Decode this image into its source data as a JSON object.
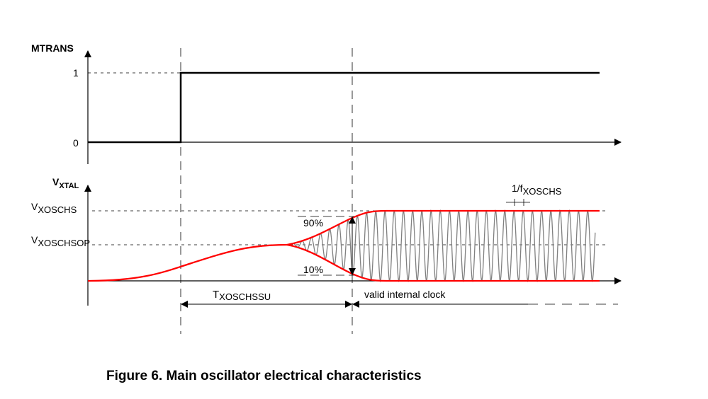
{
  "diagram": {
    "top_signal": {
      "name": "MTRANS",
      "level_high": "1",
      "level_low": "0"
    },
    "bottom_signal": {
      "name_main": "V",
      "name_sub": "XTAL",
      "level_high_main": "V",
      "level_high_sub": "XOSCHS",
      "level_op_main": "V",
      "level_op_sub": "XOSCHSOP"
    },
    "pct_90": "90%",
    "pct_10": "10%",
    "startup_main": "T",
    "startup_sub": "XOSCHSSU",
    "valid_clock": "valid internal clock",
    "period_main": "1/f",
    "period_sub": "XOSCHS",
    "colors": {
      "envelope": "#ff0000",
      "oscillation": "#808080",
      "axes": "#000000"
    }
  },
  "caption": "Figure 6. Main oscillator electrical characteristics"
}
